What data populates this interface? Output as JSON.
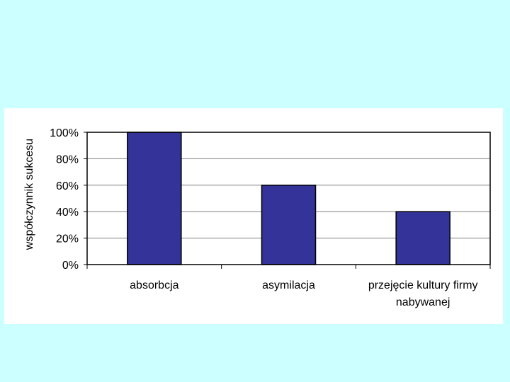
{
  "chart_data": {
    "type": "bar",
    "title": "",
    "xlabel": "",
    "ylabel": "współczynnik sukcesu",
    "categories": [
      [
        "absorbcja"
      ],
      [
        "asymilacja"
      ],
      [
        "przejęcie kultury firmy",
        "nabywanej"
      ]
    ],
    "values": [
      100,
      60,
      40
    ],
    "ylim": [
      0,
      100
    ],
    "yticks": [
      0,
      20,
      40,
      60,
      80,
      100
    ],
    "ytick_suffix": "%",
    "grid": true,
    "legend": "none",
    "bar_color": "#333399",
    "grid_color": "#808080"
  }
}
